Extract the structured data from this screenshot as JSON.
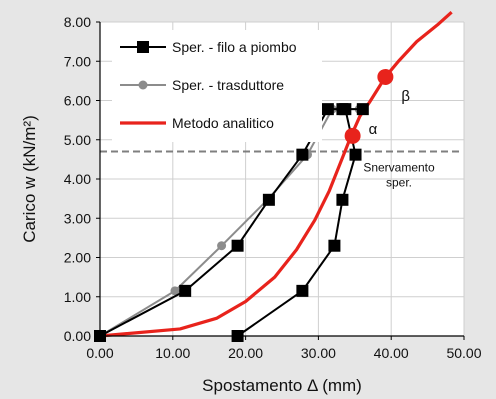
{
  "chart_data": {
    "type": "line",
    "xlabel": "Spostamento Δ (mm)",
    "ylabel": "Carico w (kN/m²)",
    "xlim": [
      0,
      50
    ],
    "ylim": [
      0,
      8
    ],
    "xticks": [
      "0.00",
      "10.00",
      "20.00",
      "30.00",
      "40.00",
      "50.00"
    ],
    "yticks": [
      "0.00",
      "1.00",
      "2.00",
      "3.00",
      "4.00",
      "5.00",
      "6.00",
      "7.00",
      "8.00"
    ],
    "x_tick_values": [
      0,
      10,
      20,
      30,
      40,
      50
    ],
    "y_tick_values": [
      0,
      1,
      2,
      3,
      4,
      5,
      6,
      7,
      8
    ],
    "grid": true,
    "legend_position": "top-left",
    "series": [
      {
        "name": "Sper. - filo a piombo",
        "color": "#000000",
        "marker": "square",
        "x": [
          0,
          11.7,
          18.9,
          23.2,
          27.8,
          31.3,
          33.3,
          36.1,
          33.7,
          35.1,
          33.3,
          32.2,
          27.8,
          18.9
        ],
        "y": [
          0,
          1.15,
          2.3,
          3.47,
          4.62,
          5.78,
          5.78,
          5.78,
          5.78,
          4.62,
          3.47,
          2.3,
          1.15,
          0
        ]
      },
      {
        "name": "Sper. - trasduttore",
        "color": "#8c8c8c",
        "marker": "circle",
        "x": [
          0,
          10.3,
          16.7,
          23.0,
          28.5,
          31.9,
          33.3,
          35.6
        ],
        "y": [
          0,
          1.15,
          2.3,
          3.47,
          4.62,
          5.78,
          5.78,
          5.78
        ]
      },
      {
        "name": "Metodo analitico",
        "color": "#e8231c",
        "marker": "none",
        "x": [
          0,
          11,
          16,
          20,
          24,
          27,
          29.5,
          31.5,
          33,
          34.5,
          35.7,
          37,
          39.2,
          41,
          43.5,
          46.5,
          48.3
        ],
        "y": [
          0,
          0.18,
          0.45,
          0.88,
          1.5,
          2.2,
          2.95,
          3.7,
          4.4,
          5.1,
          5.6,
          5.95,
          6.6,
          7.0,
          7.5,
          7.95,
          8.25
        ]
      }
    ],
    "threshold_line": {
      "y": 4.7,
      "color": "#7f7f7f",
      "label": "Snervamento sper."
    },
    "annotations": [
      {
        "label": "α",
        "x": 34.7,
        "y": 5.1,
        "color": "#e8231c"
      },
      {
        "label": "β",
        "x": 39.2,
        "y": 6.6,
        "color": "#e8231c"
      }
    ]
  }
}
